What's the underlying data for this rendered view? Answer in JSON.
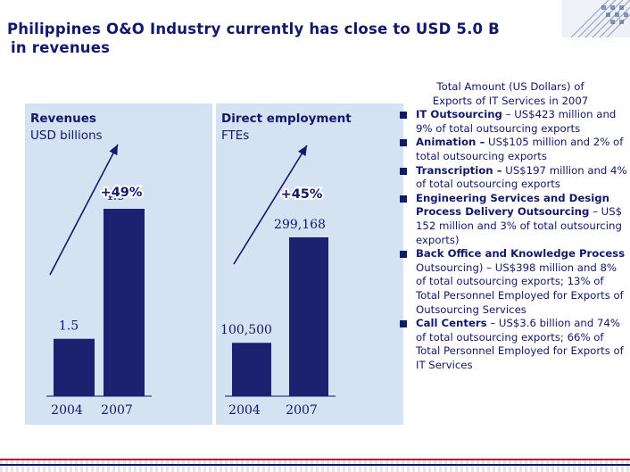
{
  "title": {
    "line1": "Philippines O&O Industry currently has close to USD 5.0 B",
    "line2": "in revenues"
  },
  "chart_data": [
    {
      "type": "bar",
      "title_bold": "Revenues",
      "title_rest": "USD billions",
      "categories": [
        "2004",
        "2007"
      ],
      "values": [
        1.5,
        4.9
      ],
      "value_labels": [
        "1.5",
        "4.9"
      ],
      "growth_label": "+49%",
      "ylim": [
        0,
        5.5
      ]
    },
    {
      "type": "bar",
      "title_bold": "Direct employment",
      "title_rest": "FTEs",
      "categories": [
        "2004",
        "2007"
      ],
      "values": [
        100500,
        299168
      ],
      "value_labels": [
        "100,500",
        "299,168"
      ],
      "growth_label": "+45%",
      "ylim": [
        0,
        335000
      ]
    }
  ],
  "colors": {
    "bar": "#1c2270",
    "panel": "#d5e2f1",
    "text": "#12186a",
    "accent_red": "#b52030"
  },
  "side_text": {
    "heading_line1": "Total Amount (US Dollars) of",
    "heading_line2": "Exports of IT Services in 2007",
    "items": [
      {
        "bold": "IT Outsourcing",
        "rest": " – US$423 million and  9% of total outsourcing exports"
      },
      {
        "bold": "Animation –",
        "rest": " US$105 million and 2% of total outsourcing exports"
      },
      {
        "bold": "Transcription –",
        "rest": " US$197 million and 4% of total outsourcing exports"
      },
      {
        "bold": "Engineering Services and Design Process Delivery Outsourcing",
        "rest": " – US$ 152 million and  3% of total outsourcing exports)"
      },
      {
        "bold": "Back Office and Knowledge Process",
        "rest": " Outsourcing) – US$398 million and 8% of total outsourcing exports; 13% of Total Personnel Employed for Exports of Outsourcing Services"
      },
      {
        "bold": "Call Centers",
        "rest": " – US$3.6 billion and 74% of total outsourcing exports; 66% of Total Personnel Employed for Exports of IT Services"
      }
    ]
  }
}
